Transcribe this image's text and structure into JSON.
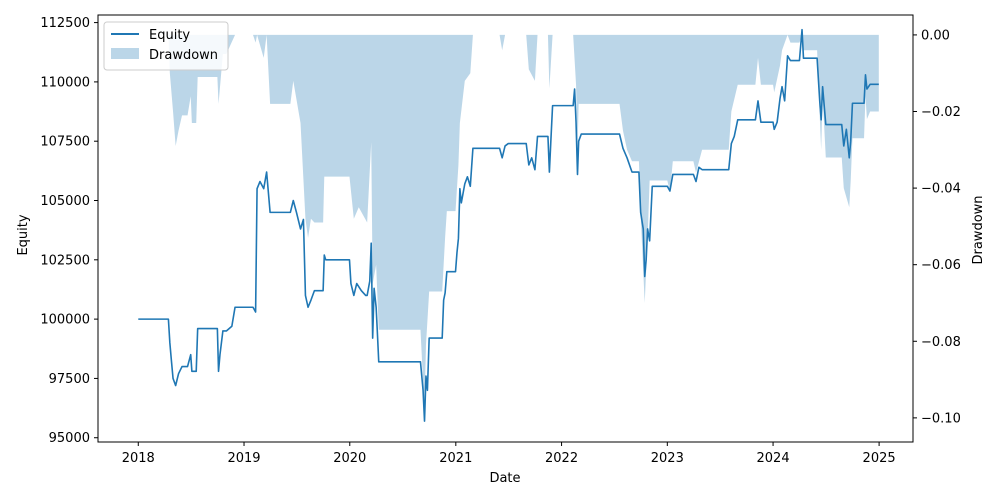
{
  "chart_data": {
    "type": "line",
    "xlabel": "Date",
    "ylabel_left": "Equity",
    "ylabel_right": "Drawdown",
    "x_ticks": [
      "2018",
      "2019",
      "2020",
      "2021",
      "2022",
      "2023",
      "2024",
      "2025"
    ],
    "x_range": [
      "2017-08-15",
      "2025-04-28"
    ],
    "y_left_ticks": [
      95000,
      97500,
      100000,
      102500,
      105000,
      107500,
      110000,
      112500
    ],
    "y_left_tick_labels": [
      "95000",
      "97500",
      "100000",
      "102500",
      "105000",
      "107500",
      "110000",
      "112500"
    ],
    "y_left_range": [
      94820,
      112820
    ],
    "y_right_ticks": [
      0.0,
      -0.02,
      -0.04,
      -0.06,
      -0.08,
      -0.1
    ],
    "y_right_tick_labels": [
      "0.00",
      "−0.02",
      "−0.04",
      "−0.06",
      "−0.08",
      "−0.10"
    ],
    "y_right_range": [
      -0.1063,
      0.0052
    ],
    "legend_position": "top-left",
    "colors": {
      "equity": "#1f77b4",
      "drawdown": "#1f77b4"
    },
    "series": [
      {
        "name": "Equity",
        "kind": "line",
        "points": [
          [
            "2018-01-01",
            100000
          ],
          [
            "2018-04-15",
            100000
          ],
          [
            "2018-04-20",
            99000
          ],
          [
            "2018-04-25",
            98300
          ],
          [
            "2018-05-01",
            97500
          ],
          [
            "2018-05-10",
            97200
          ],
          [
            "2018-05-20",
            97700
          ],
          [
            "2018-06-01",
            98000
          ],
          [
            "2018-06-20",
            98000
          ],
          [
            "2018-07-01",
            98500
          ],
          [
            "2018-07-05",
            97800
          ],
          [
            "2018-07-20",
            97800
          ],
          [
            "2018-07-25",
            99600
          ],
          [
            "2018-10-01",
            99600
          ],
          [
            "2018-10-05",
            97800
          ],
          [
            "2018-10-10",
            98500
          ],
          [
            "2018-10-20",
            99500
          ],
          [
            "2018-11-01",
            99500
          ],
          [
            "2018-11-20",
            99700
          ],
          [
            "2018-12-01",
            100500
          ],
          [
            "2019-02-01",
            100500
          ],
          [
            "2019-02-10",
            100300
          ],
          [
            "2019-02-15",
            105500
          ],
          [
            "2019-02-25",
            105800
          ],
          [
            "2019-03-10",
            105500
          ],
          [
            "2019-03-20",
            106200
          ],
          [
            "2019-04-01",
            104500
          ],
          [
            "2019-06-10",
            104500
          ],
          [
            "2019-06-20",
            105000
          ],
          [
            "2019-07-01",
            104500
          ],
          [
            "2019-07-15",
            103800
          ],
          [
            "2019-07-25",
            104200
          ],
          [
            "2019-08-01",
            101000
          ],
          [
            "2019-08-10",
            100500
          ],
          [
            "2019-08-20",
            100800
          ],
          [
            "2019-09-01",
            101200
          ],
          [
            "2019-10-01",
            101200
          ],
          [
            "2019-10-05",
            102700
          ],
          [
            "2019-10-10",
            102500
          ],
          [
            "2019-12-31",
            102500
          ],
          [
            "2020-01-05",
            101500
          ],
          [
            "2020-01-15",
            101000
          ],
          [
            "2020-01-25",
            101500
          ],
          [
            "2020-02-10",
            101200
          ],
          [
            "2020-02-25",
            101000
          ],
          [
            "2020-03-01",
            101000
          ],
          [
            "2020-03-10",
            101600
          ],
          [
            "2020-03-15",
            103200
          ],
          [
            "2020-03-20",
            99200
          ],
          [
            "2020-03-25",
            101300
          ],
          [
            "2020-04-01",
            100500
          ],
          [
            "2020-04-05",
            99500
          ],
          [
            "2020-04-10",
            98200
          ],
          [
            "2020-09-01",
            98200
          ],
          [
            "2020-09-10",
            97000
          ],
          [
            "2020-09-15",
            95700
          ],
          [
            "2020-09-20",
            97600
          ],
          [
            "2020-09-25",
            97000
          ],
          [
            "2020-10-01",
            99200
          ],
          [
            "2020-11-15",
            99200
          ],
          [
            "2020-11-20",
            100800
          ],
          [
            "2020-11-25",
            101100
          ],
          [
            "2020-12-01",
            102000
          ],
          [
            "2020-12-31",
            102000
          ],
          [
            "2021-01-05",
            102800
          ],
          [
            "2021-01-10",
            103400
          ],
          [
            "2021-01-15",
            105500
          ],
          [
            "2021-01-20",
            104900
          ],
          [
            "2021-02-01",
            105700
          ],
          [
            "2021-02-10",
            106000
          ],
          [
            "2021-02-20",
            105600
          ],
          [
            "2021-03-01",
            107200
          ],
          [
            "2021-06-01",
            107200
          ],
          [
            "2021-06-10",
            106800
          ],
          [
            "2021-06-20",
            107300
          ],
          [
            "2021-07-01",
            107400
          ],
          [
            "2021-09-01",
            107400
          ],
          [
            "2021-09-10",
            106500
          ],
          [
            "2021-09-20",
            106800
          ],
          [
            "2021-10-01",
            106300
          ],
          [
            "2021-10-10",
            107700
          ],
          [
            "2021-11-15",
            107700
          ],
          [
            "2021-11-20",
            106200
          ],
          [
            "2021-11-25",
            107500
          ],
          [
            "2021-12-01",
            109000
          ],
          [
            "2022-02-10",
            109000
          ],
          [
            "2022-02-15",
            109700
          ],
          [
            "2022-02-20",
            108300
          ],
          [
            "2022-02-25",
            106100
          ],
          [
            "2022-03-01",
            107500
          ],
          [
            "2022-03-10",
            107800
          ],
          [
            "2022-07-20",
            107800
          ],
          [
            "2022-08-01",
            107200
          ],
          [
            "2022-08-15",
            106800
          ],
          [
            "2022-09-01",
            106200
          ],
          [
            "2022-09-25",
            106200
          ],
          [
            "2022-10-01",
            104500
          ],
          [
            "2022-10-10",
            103800
          ],
          [
            "2022-10-15",
            101800
          ],
          [
            "2022-10-20",
            102500
          ],
          [
            "2022-10-25",
            103800
          ],
          [
            "2022-11-01",
            103300
          ],
          [
            "2022-11-10",
            105600
          ],
          [
            "2023-01-01",
            105600
          ],
          [
            "2023-01-10",
            105400
          ],
          [
            "2023-01-20",
            106100
          ],
          [
            "2023-04-01",
            106100
          ],
          [
            "2023-04-10",
            105800
          ],
          [
            "2023-04-20",
            106400
          ],
          [
            "2023-05-01",
            106300
          ],
          [
            "2023-08-01",
            106300
          ],
          [
            "2023-08-10",
            107400
          ],
          [
            "2023-08-20",
            107700
          ],
          [
            "2023-09-01",
            108400
          ],
          [
            "2023-11-01",
            108400
          ],
          [
            "2023-11-10",
            109200
          ],
          [
            "2023-11-20",
            108300
          ],
          [
            "2024-01-01",
            108300
          ],
          [
            "2024-01-05",
            108000
          ],
          [
            "2024-01-15",
            108300
          ],
          [
            "2024-01-25",
            109300
          ],
          [
            "2024-02-01",
            109800
          ],
          [
            "2024-02-10",
            109200
          ],
          [
            "2024-02-20",
            111100
          ],
          [
            "2024-03-01",
            110900
          ],
          [
            "2024-04-01",
            110900
          ],
          [
            "2024-04-10",
            112200
          ],
          [
            "2024-04-15",
            111000
          ],
          [
            "2024-06-01",
            111000
          ],
          [
            "2024-06-10",
            109200
          ],
          [
            "2024-06-15",
            108400
          ],
          [
            "2024-06-20",
            109800
          ],
          [
            "2024-07-01",
            108200
          ],
          [
            "2024-08-25",
            108200
          ],
          [
            "2024-09-01",
            107300
          ],
          [
            "2024-09-10",
            108000
          ],
          [
            "2024-09-20",
            106800
          ],
          [
            "2024-09-25",
            107500
          ],
          [
            "2024-10-01",
            109100
          ],
          [
            "2024-11-10",
            109100
          ],
          [
            "2024-11-15",
            110300
          ],
          [
            "2024-11-20",
            109700
          ],
          [
            "2024-12-01",
            109900
          ],
          [
            "2024-12-31",
            109900
          ]
        ]
      },
      {
        "name": "Drawdown",
        "kind": "area",
        "points": [
          [
            "2018-01-01",
            0.0
          ],
          [
            "2018-04-15",
            0.0
          ],
          [
            "2018-04-20",
            -0.01
          ],
          [
            "2018-05-01",
            -0.02
          ],
          [
            "2018-05-10",
            -0.029
          ],
          [
            "2018-05-20",
            -0.025
          ],
          [
            "2018-06-01",
            -0.021
          ],
          [
            "2018-06-20",
            -0.021
          ],
          [
            "2018-07-01",
            -0.016
          ],
          [
            "2018-07-05",
            -0.023
          ],
          [
            "2018-07-20",
            -0.023
          ],
          [
            "2018-07-25",
            -0.011
          ],
          [
            "2018-10-01",
            -0.011
          ],
          [
            "2018-10-05",
            -0.018
          ],
          [
            "2018-10-20",
            -0.005
          ],
          [
            "2018-11-01",
            -0.005
          ],
          [
            "2018-12-01",
            0.0
          ],
          [
            "2019-02-01",
            0.0
          ],
          [
            "2019-02-10",
            -0.002
          ],
          [
            "2019-02-15",
            0.0
          ],
          [
            "2019-03-10",
            -0.006
          ],
          [
            "2019-03-20",
            0.0
          ],
          [
            "2019-04-01",
            -0.018
          ],
          [
            "2019-06-10",
            -0.018
          ],
          [
            "2019-06-20",
            -0.012
          ],
          [
            "2019-07-15",
            -0.023
          ],
          [
            "2019-08-01",
            -0.048
          ],
          [
            "2019-08-10",
            -0.053
          ],
          [
            "2019-08-20",
            -0.048
          ],
          [
            "2019-09-01",
            -0.049
          ],
          [
            "2019-10-01",
            -0.049
          ],
          [
            "2019-10-05",
            -0.037
          ],
          [
            "2019-12-31",
            -0.037
          ],
          [
            "2020-01-15",
            -0.048
          ],
          [
            "2020-02-01",
            -0.045
          ],
          [
            "2020-03-01",
            -0.049
          ],
          [
            "2020-03-15",
            -0.028
          ],
          [
            "2020-03-20",
            -0.065
          ],
          [
            "2020-04-01",
            -0.06
          ],
          [
            "2020-04-10",
            -0.077
          ],
          [
            "2020-09-01",
            -0.077
          ],
          [
            "2020-09-15",
            -0.098
          ],
          [
            "2020-09-20",
            -0.081
          ],
          [
            "2020-10-01",
            -0.067
          ],
          [
            "2020-11-15",
            -0.067
          ],
          [
            "2020-11-25",
            -0.053
          ],
          [
            "2020-12-01",
            -0.046
          ],
          [
            "2020-12-31",
            -0.046
          ],
          [
            "2021-01-10",
            -0.034
          ],
          [
            "2021-01-15",
            -0.023
          ],
          [
            "2021-02-01",
            -0.012
          ],
          [
            "2021-02-20",
            -0.01
          ],
          [
            "2021-03-01",
            0.0
          ],
          [
            "2021-06-01",
            0.0
          ],
          [
            "2021-06-10",
            -0.004
          ],
          [
            "2021-06-20",
            0.0
          ],
          [
            "2021-09-01",
            0.0
          ],
          [
            "2021-09-10",
            -0.009
          ],
          [
            "2021-10-01",
            -0.012
          ],
          [
            "2021-10-10",
            0.0
          ],
          [
            "2021-11-15",
            0.0
          ],
          [
            "2021-11-20",
            -0.014
          ],
          [
            "2021-12-01",
            0.0
          ],
          [
            "2022-02-10",
            0.0
          ],
          [
            "2022-02-20",
            -0.013
          ],
          [
            "2022-02-25",
            -0.03
          ],
          [
            "2022-03-01",
            -0.018
          ],
          [
            "2022-03-10",
            -0.018
          ],
          [
            "2022-07-20",
            -0.018
          ],
          [
            "2022-08-01",
            -0.025
          ],
          [
            "2022-08-15",
            -0.03
          ],
          [
            "2022-09-01",
            -0.033
          ],
          [
            "2022-09-25",
            -0.033
          ],
          [
            "2022-10-01",
            -0.047
          ],
          [
            "2022-10-15",
            -0.07
          ],
          [
            "2022-10-25",
            -0.053
          ],
          [
            "2022-11-01",
            -0.038
          ],
          [
            "2023-01-01",
            -0.038
          ],
          [
            "2023-01-10",
            -0.041
          ],
          [
            "2023-01-20",
            -0.033
          ],
          [
            "2023-04-01",
            -0.033
          ],
          [
            "2023-04-10",
            -0.036
          ],
          [
            "2023-05-01",
            -0.03
          ],
          [
            "2023-08-01",
            -0.03
          ],
          [
            "2023-08-10",
            -0.02
          ],
          [
            "2023-09-01",
            -0.013
          ],
          [
            "2023-11-01",
            -0.013
          ],
          [
            "2023-11-10",
            -0.006
          ],
          [
            "2023-11-20",
            -0.013
          ],
          [
            "2024-01-01",
            -0.013
          ],
          [
            "2024-01-05",
            -0.015
          ],
          [
            "2024-01-25",
            -0.008
          ],
          [
            "2024-02-01",
            -0.004
          ],
          [
            "2024-02-20",
            0.0
          ],
          [
            "2024-03-01",
            -0.002
          ],
          [
            "2024-04-01",
            -0.002
          ],
          [
            "2024-04-10",
            0.0
          ],
          [
            "2024-04-15",
            -0.004
          ],
          [
            "2024-06-01",
            -0.004
          ],
          [
            "2024-06-10",
            -0.021
          ],
          [
            "2024-06-15",
            -0.03
          ],
          [
            "2024-06-20",
            -0.016
          ],
          [
            "2024-07-01",
            -0.032
          ],
          [
            "2024-08-25",
            -0.032
          ],
          [
            "2024-09-01",
            -0.04
          ],
          [
            "2024-09-20",
            -0.045
          ],
          [
            "2024-09-25",
            -0.038
          ],
          [
            "2024-10-01",
            -0.027
          ],
          [
            "2024-11-10",
            -0.027
          ],
          [
            "2024-11-15",
            -0.016
          ],
          [
            "2024-11-20",
            -0.022
          ],
          [
            "2024-12-01",
            -0.02
          ],
          [
            "2024-12-31",
            -0.02
          ]
        ]
      }
    ]
  }
}
